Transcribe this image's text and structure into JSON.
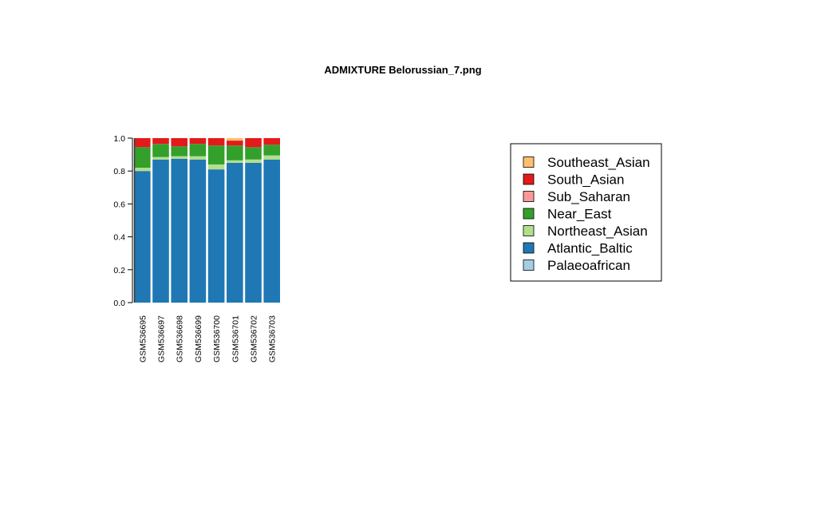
{
  "chart_data": {
    "type": "bar",
    "stacked": true,
    "title": "ADMIXTURE Belorussian_7.png",
    "xlabel": "",
    "ylabel": "",
    "ylim": [
      0,
      1
    ],
    "yticks": [
      "0.0",
      "0.2",
      "0.4",
      "0.6",
      "0.8",
      "1.0"
    ],
    "categories": [
      "GSM536695",
      "GSM536697",
      "GSM536698",
      "GSM536699",
      "GSM536700",
      "GSM536701",
      "GSM536702",
      "GSM536703"
    ],
    "series": [
      {
        "name": "Palaeoafrican",
        "color": "#a6cee3",
        "values": [
          0.0,
          0.0,
          0.0,
          0.0,
          0.0,
          0.0,
          0.0,
          0.0
        ]
      },
      {
        "name": "Atlantic_Baltic",
        "color": "#1f78b4",
        "values": [
          0.8,
          0.87,
          0.875,
          0.87,
          0.81,
          0.85,
          0.85,
          0.87
        ]
      },
      {
        "name": "Northeast_Asian",
        "color": "#b2df8a",
        "values": [
          0.02,
          0.015,
          0.015,
          0.02,
          0.03,
          0.015,
          0.02,
          0.025
        ]
      },
      {
        "name": "Near_East",
        "color": "#33a02c",
        "values": [
          0.125,
          0.08,
          0.06,
          0.075,
          0.115,
          0.09,
          0.075,
          0.065
        ]
      },
      {
        "name": "Sub_Saharan",
        "color": "#fb9a99",
        "values": [
          0.0,
          0.0,
          0.0,
          0.0,
          0.0,
          0.0,
          0.0,
          0.0
        ]
      },
      {
        "name": "South_Asian",
        "color": "#e31a1c",
        "values": [
          0.055,
          0.035,
          0.05,
          0.035,
          0.045,
          0.03,
          0.055,
          0.04
        ]
      },
      {
        "name": "Southeast_Asian",
        "color": "#fdbf6f",
        "values": [
          0.0,
          0.0,
          0.0,
          0.0,
          0.0,
          0.015,
          0.0,
          0.0
        ]
      }
    ],
    "legend": {
      "placement": "right",
      "entries": [
        "Southeast_Asian",
        "South_Asian",
        "Sub_Saharan",
        "Near_East",
        "Northeast_Asian",
        "Atlantic_Baltic",
        "Palaeoafrican"
      ],
      "colors": [
        "#fdbf6f",
        "#e31a1c",
        "#fb9a99",
        "#33a02c",
        "#b2df8a",
        "#1f78b4",
        "#a6cee3"
      ]
    },
    "grid": false
  }
}
